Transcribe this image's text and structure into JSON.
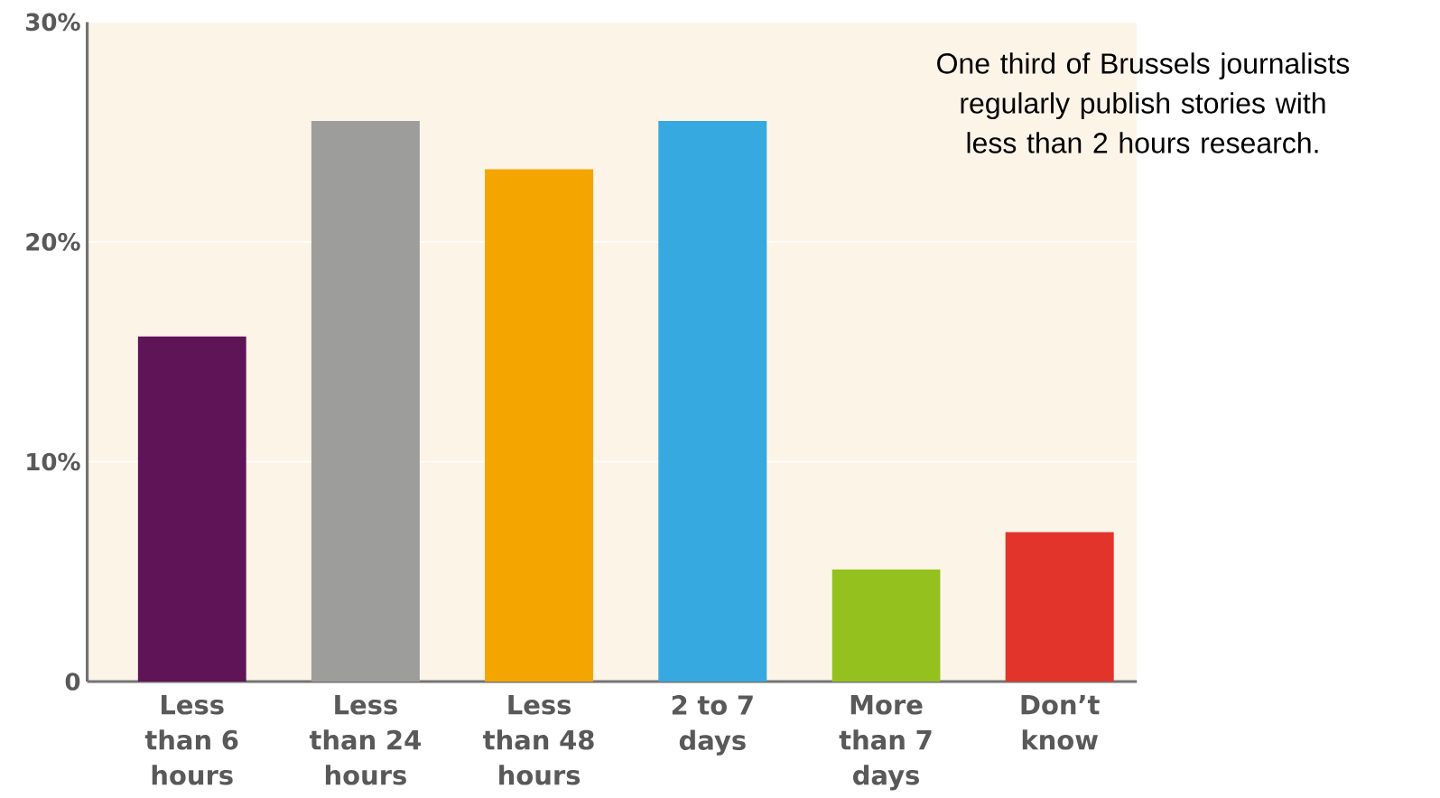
{
  "chart_data": {
    "type": "bar",
    "categories": [
      "Less than 6 hours",
      "Less than 24 hours",
      "Less than 48 hours",
      "2 to 7 days",
      "More than 7 days",
      "Don’t know"
    ],
    "values": [
      15.7,
      25.5,
      23.3,
      25.5,
      5.1,
      6.8
    ],
    "colors": [
      "#5e1457",
      "#9d9d9c",
      "#f5a500",
      "#36a9e1",
      "#95c11f",
      "#e3342b"
    ],
    "ylim": [
      0,
      30
    ],
    "yticks": [
      {
        "value": 0,
        "label": "0"
      },
      {
        "value": 10,
        "label": "10%"
      },
      {
        "value": 20,
        "label": "20%"
      },
      {
        "value": 30,
        "label": "30%"
      }
    ],
    "grid": "y",
    "annotations": [
      "One third of Brussels journalists regularly publish stories with less than 2 hours research."
    ]
  }
}
